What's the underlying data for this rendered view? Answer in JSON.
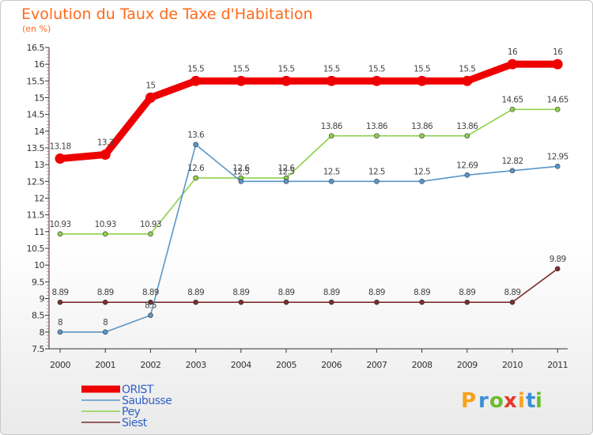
{
  "chart_data": {
    "type": "line",
    "title": "Evolution du Taux de Taxe d'Habitation",
    "subtitle": "(en %)",
    "categories": [
      "2000",
      "2001",
      "2002",
      "2003",
      "2004",
      "2005",
      "2006",
      "2007",
      "2008",
      "2009",
      "2010",
      "2011"
    ],
    "ylim": [
      7.5,
      16.5
    ],
    "yticks": [
      "7.5",
      "8",
      "8.5",
      "9",
      "9.5",
      "10",
      "10.5",
      "11",
      "11.5",
      "12",
      "12.5",
      "13",
      "13.5",
      "14",
      "14.5",
      "15",
      "15.5",
      "16",
      "16.5"
    ],
    "series": [
      {
        "name": "ORIST",
        "color": "#ee0000",
        "values": [
          13.18,
          13.3,
          15,
          15.5,
          15.5,
          15.5,
          15.5,
          15.5,
          15.5,
          15.5,
          16,
          16
        ],
        "labels": [
          "13.18",
          "13.3",
          "15",
          "15.5",
          "15.5",
          "15.5",
          "15.5",
          "15.5",
          "15.5",
          "15.5",
          "16",
          "16"
        ]
      },
      {
        "name": "Saubusse",
        "color": "#5a96c8",
        "values": [
          8,
          8,
          8.5,
          13.6,
          12.5,
          12.5,
          12.5,
          12.5,
          12.5,
          12.69,
          12.82,
          12.95
        ],
        "labels": [
          "8",
          "8",
          "8.5",
          "13.6",
          "12.5",
          "12.5",
          "12.5",
          "12.5",
          "12.5",
          "12.69",
          "12.82",
          "12.95"
        ]
      },
      {
        "name": "Pey",
        "color": "#8ed04a",
        "values": [
          10.93,
          10.93,
          10.93,
          12.6,
          12.6,
          12.6,
          13.86,
          13.86,
          13.86,
          13.86,
          14.65,
          14.65
        ],
        "labels": [
          "10.93",
          "10.93",
          "10.93",
          "12.6",
          "12.6",
          "12.6",
          "13.86",
          "13.86",
          "13.86",
          "13.86",
          "14.65",
          "14.65"
        ]
      },
      {
        "name": "Siest",
        "color": "#7a2e2e",
        "values": [
          8.89,
          8.89,
          8.89,
          8.89,
          8.89,
          8.89,
          8.89,
          8.89,
          8.89,
          8.89,
          8.89,
          9.89
        ],
        "labels": [
          "8.89",
          "8.89",
          "8.89",
          "8.89",
          "8.89",
          "8.89",
          "8.89",
          "8.89",
          "8.89",
          "8.89",
          "8.89",
          "9.89"
        ]
      }
    ],
    "legend_position": "bottom-left",
    "grid": false
  },
  "brand": {
    "letters": [
      "P",
      "r",
      "o",
      "x",
      "i",
      "t",
      "i"
    ],
    "colors": [
      "#f7a21b",
      "#3a8fd6",
      "#6bbd2e",
      "#e8392b",
      "#f7a21b",
      "#3a8fd6",
      "#6bbd2e"
    ]
  }
}
